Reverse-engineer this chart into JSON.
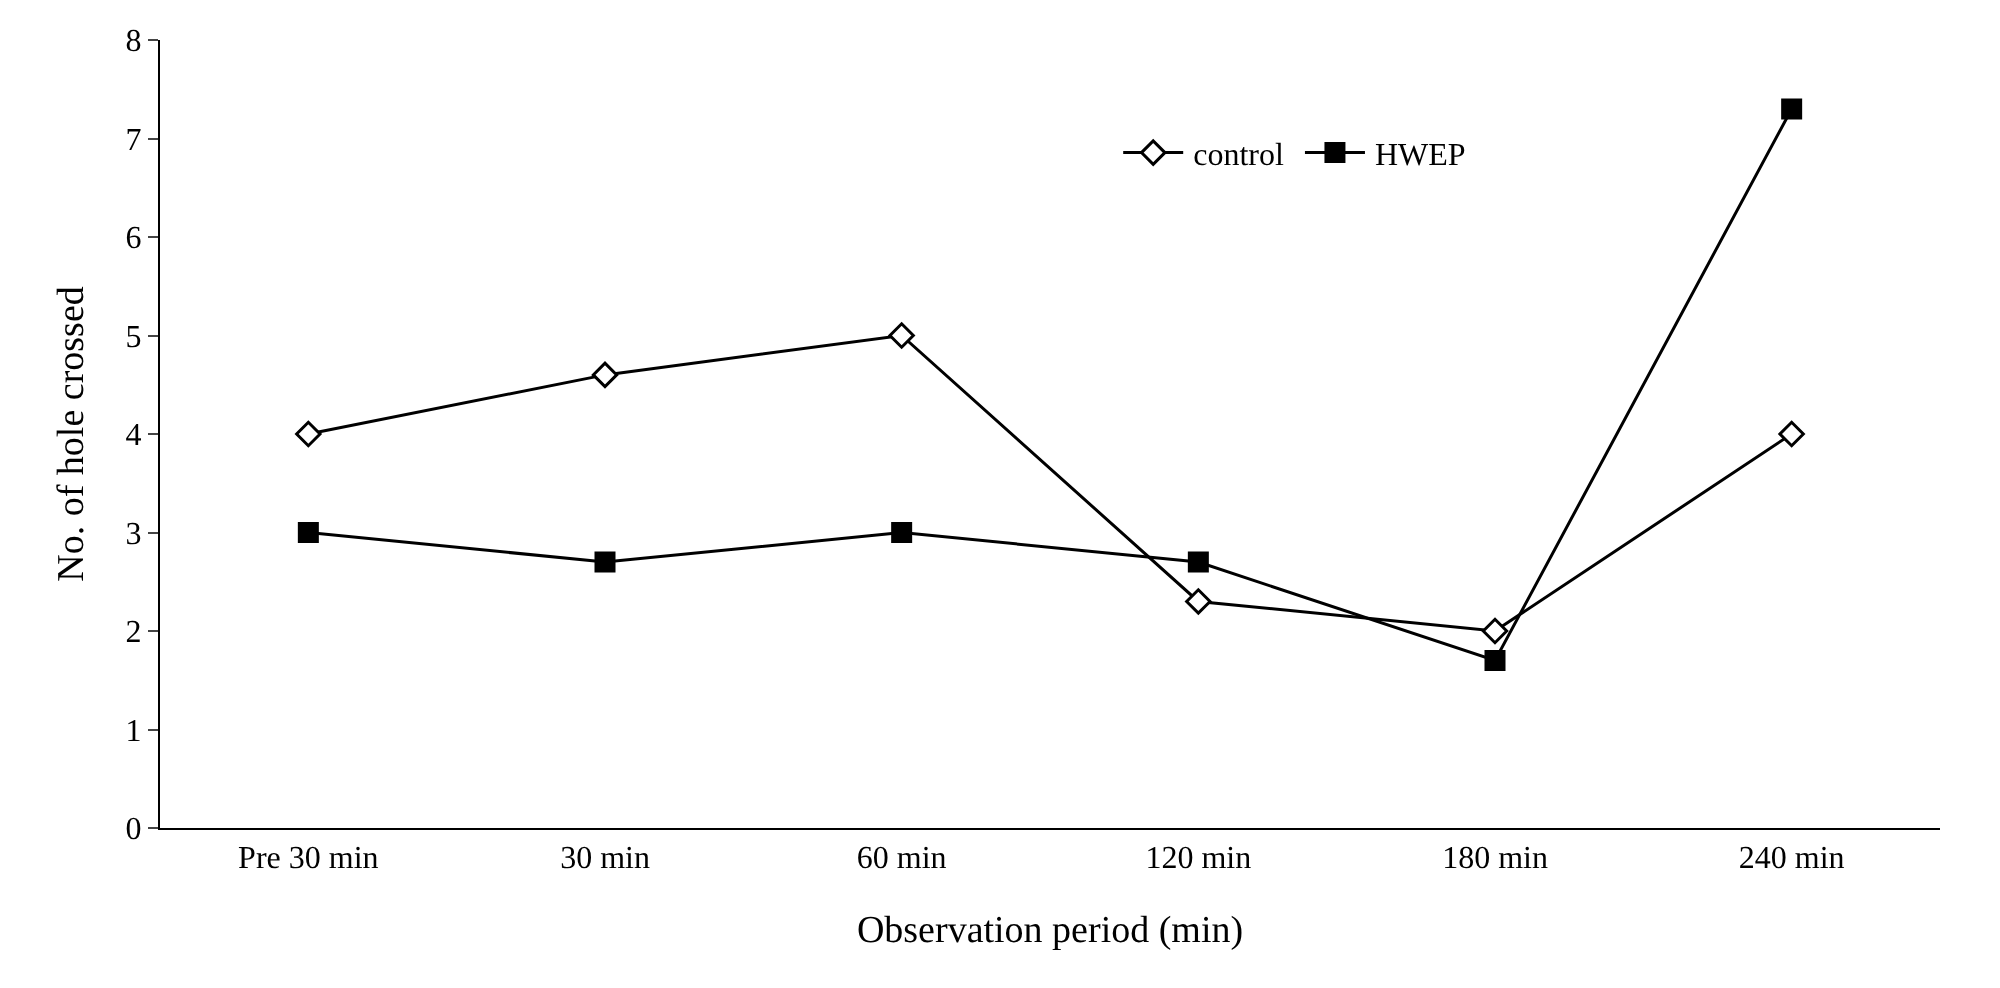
{
  "chart_data": {
    "type": "line",
    "xlabel": "Observation period (min)",
    "ylabel": "No. of hole crossed",
    "categories": [
      "Pre 30 min",
      "30 min",
      "60 min",
      "120 min",
      "180 min",
      "240 min"
    ],
    "series": [
      {
        "name": "control",
        "color": "#000000",
        "marker": "diamond",
        "values": [
          4.0,
          4.6,
          5.0,
          2.3,
          2.0,
          4.0
        ]
      },
      {
        "name": "HWEP",
        "color": "#000000",
        "marker": "square",
        "values": [
          3.0,
          2.7,
          3.0,
          2.7,
          1.7,
          7.3
        ]
      }
    ],
    "ylim": [
      0,
      8
    ],
    "yticks": [
      0,
      1,
      2,
      3,
      4,
      5,
      6,
      7,
      8
    ],
    "legend": "top right",
    "line_style": "solid"
  }
}
